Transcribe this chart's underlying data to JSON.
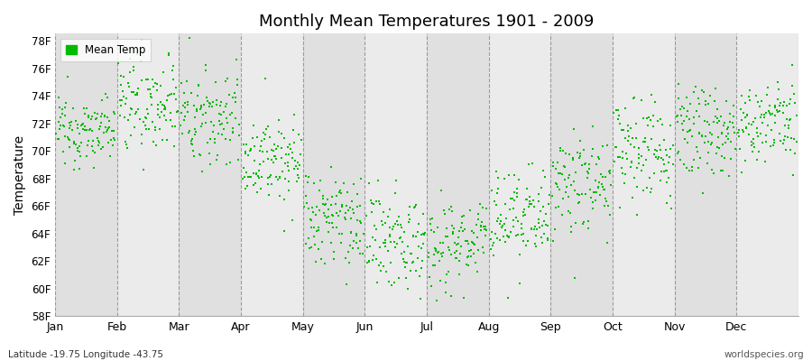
{
  "title": "Monthly Mean Temperatures 1901 - 2009",
  "ylabel": "Temperature",
  "dot_color": "#00bb00",
  "background_color": "#ffffff",
  "plot_bg_light": "#ebebeb",
  "plot_bg_dark": "#e0e0e0",
  "legend_label": "Mean Temp",
  "ylim": [
    58,
    78.5
  ],
  "yticks": [
    58,
    60,
    62,
    64,
    66,
    68,
    70,
    72,
    74,
    76,
    78
  ],
  "ytick_labels": [
    "58F",
    "60F",
    "62F",
    "64F",
    "66F",
    "68F",
    "70F",
    "72F",
    "74F",
    "76F",
    "78F"
  ],
  "months": [
    "Jan",
    "Feb",
    "Mar",
    "Apr",
    "May",
    "Jun",
    "Jul",
    "Aug",
    "Sep",
    "Oct",
    "Nov",
    "Dec"
  ],
  "footnote_left": "Latitude -19.75 Longitude -43.75",
  "footnote_right": "worldspecies.org",
  "n_years": 109,
  "start_year": 1901,
  "monthly_means": [
    71.5,
    73.5,
    72.5,
    69.5,
    65.0,
    63.5,
    63.5,
    65.0,
    67.5,
    70.0,
    71.5,
    72.0
  ],
  "monthly_stds": [
    1.2,
    1.8,
    1.8,
    1.5,
    1.8,
    1.8,
    1.8,
    1.8,
    1.8,
    1.8,
    1.5,
    1.5
  ]
}
